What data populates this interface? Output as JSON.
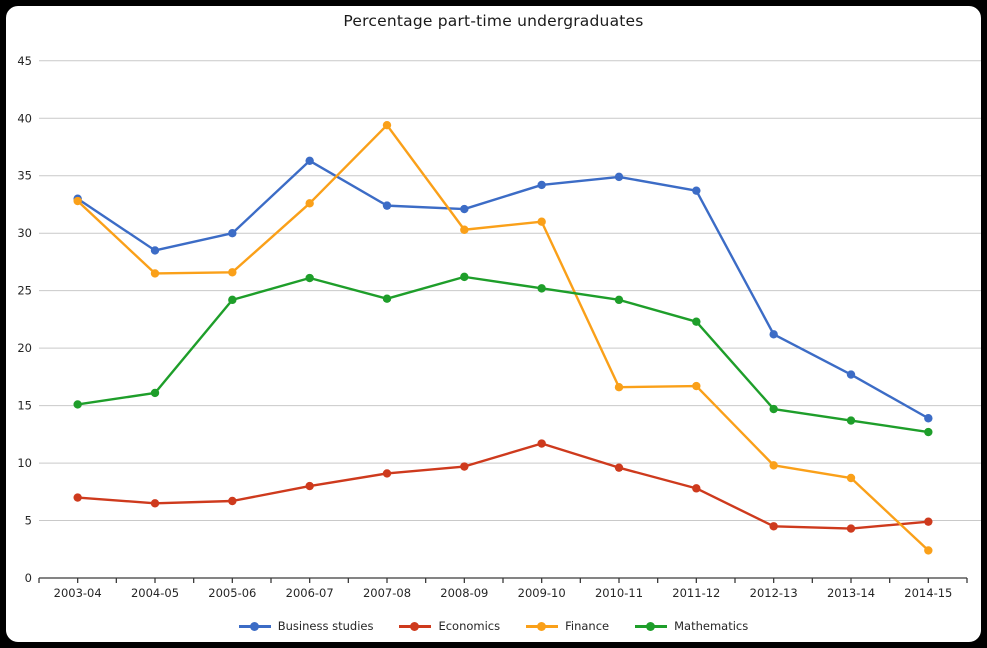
{
  "window": {
    "outer_background": "#000000",
    "inner_background": "#ffffff"
  },
  "colors": {
    "gridline": "#c9c9c9",
    "axis": "#3b3b3b",
    "text": "#262626",
    "title_text": "#1a1a1a"
  },
  "chart_data": {
    "type": "line",
    "title": "Percentage part-time undergraduates",
    "xlabel": "",
    "ylabel": "",
    "grid": true,
    "legend_position": "bottom",
    "categories": [
      "2003-04",
      "2004-05",
      "2005-06",
      "2006-07",
      "2007-08",
      "2008-09",
      "2009-10",
      "2010-11",
      "2011-12",
      "2012-13",
      "2013-14",
      "2014-15"
    ],
    "y_axis": {
      "min": 0,
      "max": 45,
      "tick_interval": 5,
      "tick_labels": [
        "0",
        "5",
        "10",
        "15",
        "20",
        "25",
        "30",
        "35",
        "40",
        "45"
      ]
    },
    "series": [
      {
        "name": "Business studies",
        "color": "#3c6cc6",
        "marker": "circle",
        "values": [
          33.0,
          28.5,
          30.0,
          36.3,
          32.4,
          32.1,
          34.2,
          34.9,
          33.7,
          21.2,
          17.7,
          13.9
        ]
      },
      {
        "name": "Economics",
        "color": "#ce3a1d",
        "marker": "circle",
        "values": [
          7.0,
          6.5,
          6.7,
          8.0,
          9.1,
          9.7,
          11.7,
          9.6,
          7.8,
          4.5,
          4.3,
          4.9
        ]
      },
      {
        "name": "Finance",
        "color": "#faa019",
        "marker": "circle",
        "values": [
          32.8,
          26.5,
          26.6,
          32.6,
          39.4,
          30.3,
          31.0,
          16.6,
          16.7,
          9.8,
          8.7,
          2.4
        ]
      },
      {
        "name": "Mathematics",
        "color": "#1e9e2a",
        "marker": "circle",
        "values": [
          15.1,
          16.1,
          24.2,
          26.1,
          24.3,
          26.2,
          25.2,
          24.2,
          22.3,
          14.7,
          13.7,
          12.7
        ]
      }
    ]
  }
}
